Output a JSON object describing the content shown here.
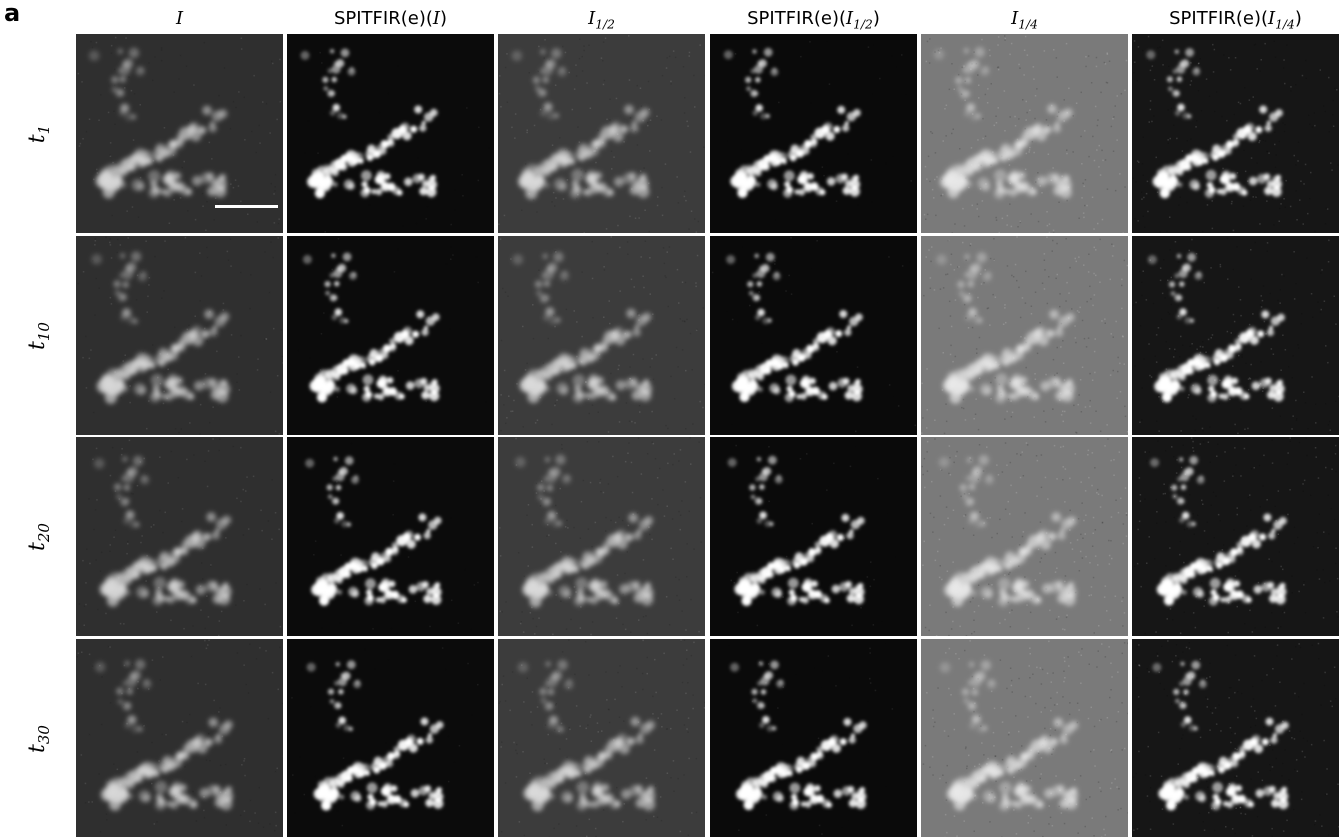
{
  "panel_label": "a",
  "columns": [
    {
      "type": "math",
      "base": "I",
      "sub": ""
    },
    {
      "type": "spit",
      "base": "I",
      "sub": ""
    },
    {
      "type": "math",
      "base": "I",
      "sub": "1/2"
    },
    {
      "type": "spit",
      "base": "I",
      "sub": "1/2"
    },
    {
      "type": "math",
      "base": "I",
      "sub": "1/4"
    },
    {
      "type": "spit",
      "base": "I",
      "sub": "1/4"
    }
  ],
  "spit_prefix": "SPITFIR(e)",
  "rows": [
    {
      "base": "t",
      "sub": "1"
    },
    {
      "base": "t",
      "sub": "10"
    },
    {
      "base": "t",
      "sub": "20"
    },
    {
      "base": "t",
      "sub": "30"
    }
  ],
  "tile_style": [
    {
      "bg": "#2f2f2f",
      "fg": "#d8d8d8",
      "noise": 0.35
    },
    {
      "bg": "#0b0b0b",
      "fg": "#ffffff",
      "noise": 0.08
    },
    {
      "bg": "#3c3c3c",
      "fg": "#dadada",
      "noise": 0.45
    },
    {
      "bg": "#0a0a0a",
      "fg": "#ffffff",
      "noise": 0.12
    },
    {
      "bg": "#7a7a7a",
      "fg": "#e8e8e8",
      "noise": 0.7
    },
    {
      "bg": "#161616",
      "fg": "#ffffff",
      "noise": 0.6
    }
  ]
}
